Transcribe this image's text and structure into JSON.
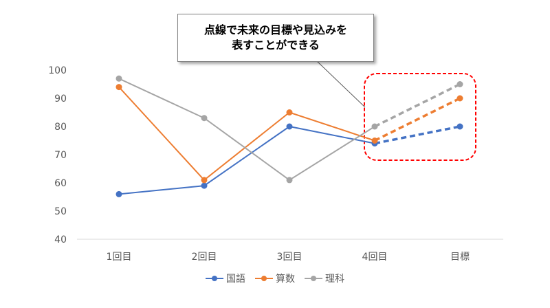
{
  "chart_data": {
    "type": "line",
    "categories": [
      "1回目",
      "2回目",
      "3回目",
      "4回目",
      "目標"
    ],
    "ylim": [
      40,
      100
    ],
    "yticks": [
      40,
      50,
      60,
      70,
      80,
      90,
      100
    ],
    "grid": false,
    "legend": "bottom",
    "dashed_from_category": "4回目",
    "series": [
      {
        "name": "国語",
        "values": [
          56,
          59,
          80,
          74,
          80
        ],
        "color": "#4472C4"
      },
      {
        "name": "算数",
        "values": [
          94,
          61,
          85,
          75,
          90
        ],
        "color": "#ED7D31"
      },
      {
        "name": "理科",
        "values": [
          97,
          83,
          61,
          80,
          95
        ],
        "color": "#A5A5A5"
      }
    ],
    "annotation": {
      "lines": [
        "点線で未来の目標や見込みを",
        "表すことができる"
      ],
      "highlight_color": "#FF0000"
    }
  }
}
